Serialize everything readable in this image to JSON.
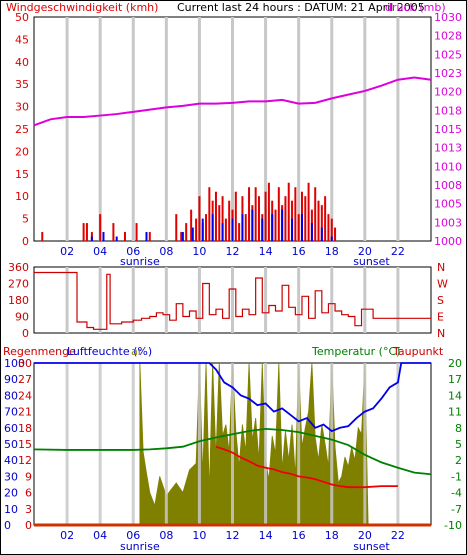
{
  "colors": {
    "wind": "#e00000",
    "gust": "#0000ee",
    "pressure": "#dd00dd",
    "direction": "#cc0000",
    "humidity": "#0000ee",
    "temperature": "#008000",
    "dewpoint": "#ee0000",
    "solar": "#808000",
    "rain": "#cc3300",
    "axis_blue": "#0000cc",
    "axis_green": "#008000",
    "axis_red": "#cc0000",
    "grid": "#c8c8c8"
  },
  "header": {
    "wind_title": "Windgeschwindigkeit (kmh)",
    "current": "Current last 24 hours : DATUM: 21 April 2005",
    "pressure_title": "druck (mb)"
  },
  "labels": {
    "sunrise": "sunrise",
    "sunset": "sunset",
    "rain_title": "Regenmenge",
    "humidity_title": "Luftfeuchte (%)",
    "solar_fragment": "ar",
    "temperature_title": "Temperatur (°C)",
    "dewpoint_title": "Taupunkt"
  },
  "chart_data": [
    {
      "type": "bar",
      "title": "Windgeschwindigkeit (kmh)",
      "hours_range": [
        0,
        24
      ],
      "x_ticks": [
        "02",
        "04",
        "06",
        "08",
        "10",
        "12",
        "14",
        "16",
        "18",
        "20",
        "22"
      ],
      "ylim": [
        0,
        50
      ],
      "y_ticks": [
        "0",
        "5",
        "10",
        "15",
        "20",
        "25",
        "30",
        "35",
        "40",
        "45",
        "50"
      ],
      "y2_label": "druck (mb)",
      "y2lim": [
        1000,
        1030
      ],
      "y2_ticks": [
        "1000",
        "1003",
        "1005",
        "1008",
        "1010",
        "1013",
        "1015",
        "1018",
        "1020",
        "1023",
        "1025",
        "1028",
        "1030"
      ],
      "series": [
        {
          "name": "Windgeschwindigkeit",
          "hours": [
            0.5,
            3.0,
            3.2,
            3.5,
            4.0,
            4.8,
            5.5,
            6.2,
            7.0,
            8.6,
            8.9,
            9.2,
            9.5,
            9.8,
            10.0,
            10.2,
            10.4,
            10.6,
            10.8,
            11.0,
            11.2,
            11.4,
            11.6,
            11.8,
            12.0,
            12.2,
            12.4,
            12.6,
            12.8,
            13.0,
            13.2,
            13.4,
            13.6,
            13.8,
            14.0,
            14.2,
            14.4,
            14.6,
            14.8,
            15.0,
            15.2,
            15.4,
            15.6,
            15.8,
            16.0,
            16.2,
            16.4,
            16.6,
            16.8,
            17.0,
            17.2,
            17.4,
            17.6,
            17.8,
            18.0,
            18.2
          ],
          "values": [
            2,
            4,
            4,
            2,
            6,
            4,
            2,
            4,
            2,
            6,
            2,
            4,
            7,
            5,
            10,
            4,
            6,
            12,
            9,
            11,
            8,
            10,
            5,
            9,
            7,
            11,
            4,
            10,
            6,
            12,
            8,
            12,
            10,
            6,
            11,
            13,
            9,
            7,
            12,
            8,
            10,
            13,
            9,
            12,
            6,
            11,
            10,
            13,
            7,
            12,
            9,
            8,
            10,
            6,
            5,
            3
          ]
        },
        {
          "name": "Boeen",
          "hours": [
            3.5,
            4.2,
            5.0,
            6.8,
            9.0,
            9.6,
            10.2,
            10.8,
            11.4,
            12.0,
            12.6,
            13.2,
            13.8,
            14.4,
            15.0,
            15.6,
            16.2,
            16.8,
            17.4,
            18.0
          ],
          "values": [
            1,
            2,
            1,
            2,
            2,
            3,
            5,
            6,
            4,
            5,
            6,
            7,
            5,
            6,
            7,
            5,
            6,
            4,
            3,
            1
          ]
        },
        {
          "name": "Luftdruck",
          "axis": "right",
          "hours": [
            0,
            1,
            2,
            3,
            4,
            5,
            6,
            7,
            8,
            9,
            10,
            11,
            12,
            13,
            14,
            15,
            16,
            17,
            18,
            19,
            20,
            21,
            22,
            23,
            24
          ],
          "values": [
            1015.5,
            1016.3,
            1016.6,
            1016.6,
            1016.8,
            1017.0,
            1017.3,
            1017.6,
            1017.9,
            1018.1,
            1018.4,
            1018.4,
            1018.5,
            1018.7,
            1018.7,
            1018.9,
            1018.4,
            1018.5,
            1019.1,
            1019.6,
            1020.1,
            1020.8,
            1021.6,
            1021.9,
            1021.6
          ]
        }
      ]
    },
    {
      "type": "line",
      "hours_range": [
        0,
        24
      ],
      "ylim": [
        0,
        360
      ],
      "y_ticks": [
        "0",
        "90",
        "180",
        "270",
        "360"
      ],
      "y2_ticks": [
        "N",
        "W",
        "S",
        "E",
        "N"
      ],
      "series": [
        {
          "name": "Windrichtung",
          "hours": [
            0.0,
            2.4,
            2.6,
            3.2,
            3.6,
            4.4,
            4.6,
            5.3,
            6.0,
            6.5,
            7.0,
            7.4,
            7.8,
            8.2,
            8.6,
            9.0,
            9.4,
            9.8,
            10.2,
            10.6,
            11.0,
            11.4,
            11.8,
            12.2,
            12.6,
            13.0,
            13.4,
            13.8,
            14.2,
            14.6,
            15.0,
            15.4,
            15.8,
            16.2,
            16.6,
            17.0,
            17.4,
            17.8,
            18.2,
            18.6,
            19.0,
            19.4,
            19.8,
            20.5,
            22.0,
            24.0
          ],
          "values": [
            330,
            330,
            60,
            30,
            20,
            320,
            50,
            60,
            70,
            80,
            90,
            110,
            100,
            70,
            160,
            90,
            120,
            80,
            270,
            100,
            130,
            80,
            240,
            90,
            130,
            100,
            300,
            110,
            150,
            120,
            260,
            140,
            100,
            200,
            80,
            230,
            110,
            160,
            120,
            100,
            90,
            40,
            130,
            80,
            80,
            80
          ]
        }
      ]
    },
    {
      "type": "line",
      "hours_range": [
        0,
        24
      ],
      "ylim": [
        0,
        100
      ],
      "y_ticks": [
        "0",
        "10",
        "20",
        "30",
        "40",
        "50",
        "60",
        "70",
        "80",
        "90",
        "100"
      ],
      "rain_ticks": [
        "0",
        "3",
        "6",
        "9",
        "12",
        "15",
        "18",
        "21",
        "24",
        "27",
        "30"
      ],
      "y2_label": "Temperatur (°C)",
      "y2lim": [
        -10,
        20
      ],
      "y2_ticks": [
        "-10",
        "-7",
        "-4",
        "-1",
        "2",
        "5",
        "8",
        "11",
        "14",
        "17",
        "20"
      ],
      "series": [
        {
          "name": "Luftfeuchte",
          "hours": [
            0,
            1,
            2,
            3,
            4,
            5,
            6,
            7,
            8,
            9,
            10,
            10.6,
            11.0,
            11.5,
            12.0,
            12.5,
            13.0,
            13.5,
            14.0,
            14.5,
            15.0,
            15.5,
            16.0,
            16.5,
            17.0,
            17.5,
            18.0,
            18.5,
            19.0,
            19.5,
            20.0,
            20.5,
            21.0,
            21.5,
            22.0,
            22.2,
            24.0
          ],
          "values": [
            100,
            100,
            100,
            100,
            100,
            100,
            100,
            100,
            100,
            100,
            100,
            100,
            96,
            88,
            85,
            80,
            78,
            74,
            75,
            70,
            72,
            68,
            64,
            66,
            60,
            62,
            58,
            60,
            61,
            66,
            70,
            72,
            78,
            85,
            88,
            100,
            100
          ]
        },
        {
          "name": "Temperatur",
          "axis": "right",
          "hours": [
            0,
            2,
            4,
            6,
            7,
            8,
            9,
            10,
            11,
            12,
            13,
            14,
            15,
            16,
            17,
            18,
            19,
            20,
            21,
            22,
            23,
            24
          ],
          "values": [
            4.0,
            3.9,
            3.9,
            3.9,
            4.0,
            4.2,
            4.5,
            5.5,
            6.2,
            6.8,
            7.4,
            7.8,
            7.6,
            7.2,
            6.5,
            5.8,
            4.8,
            3.0,
            1.6,
            0.6,
            -0.3,
            -0.6
          ]
        },
        {
          "name": "Taupunkt",
          "axis": "right",
          "hours": [
            11.0,
            11.5,
            12.0,
            12.5,
            13.0,
            13.5,
            14.0,
            14.5,
            15.0,
            15.5,
            16.0,
            16.5,
            17.0,
            17.5,
            18.0,
            18.5,
            19.0,
            19.5,
            20.0,
            21.0,
            22.0
          ],
          "values": [
            4.5,
            4.0,
            3.4,
            2.5,
            1.8,
            1.0,
            0.6,
            0.3,
            -0.2,
            -0.5,
            -1.0,
            -1.2,
            -1.5,
            -2.0,
            -2.5,
            -2.8,
            -3.0,
            -3.0,
            -3.0,
            -2.8,
            -2.8
          ]
        },
        {
          "name": "Solar",
          "hours": [
            6.4,
            6.6,
            6.8,
            7.0,
            7.3,
            7.6,
            8.0,
            8.3,
            8.6,
            9.0,
            9.4,
            9.8,
            10.0,
            10.2,
            10.4,
            10.6,
            10.8,
            11.0,
            11.2,
            11.4,
            11.6,
            11.8,
            12.0,
            12.2,
            12.4,
            12.6,
            12.8,
            13.0,
            13.2,
            13.4,
            13.6,
            13.8,
            14.0,
            14.2,
            14.4,
            14.6,
            14.8,
            15.0,
            15.2,
            15.4,
            15.6,
            15.8,
            16.0,
            16.2,
            16.4,
            16.6,
            16.8,
            17.0,
            17.2,
            17.4,
            17.6,
            17.8,
            18.0,
            18.2,
            18.4,
            18.6,
            18.8,
            19.0,
            19.2,
            19.4,
            19.6,
            19.8,
            20.0,
            20.2
          ],
          "values": [
            100,
            45,
            32,
            20,
            12,
            30,
            18,
            22,
            26,
            20,
            34,
            38,
            100,
            30,
            100,
            20,
            100,
            42,
            100,
            55,
            62,
            45,
            100,
            58,
            36,
            62,
            45,
            100,
            52,
            66,
            40,
            100,
            40,
            28,
            55,
            44,
            100,
            34,
            58,
            40,
            62,
            30,
            100,
            48,
            60,
            70,
            100,
            54,
            40,
            62,
            50,
            36,
            100,
            48,
            26,
            30,
            42,
            36,
            48,
            40,
            60,
            56,
            100,
            0
          ]
        },
        {
          "name": "Regenmenge",
          "hours": [
            0,
            24
          ],
          "values": [
            0,
            0
          ]
        }
      ]
    }
  ]
}
